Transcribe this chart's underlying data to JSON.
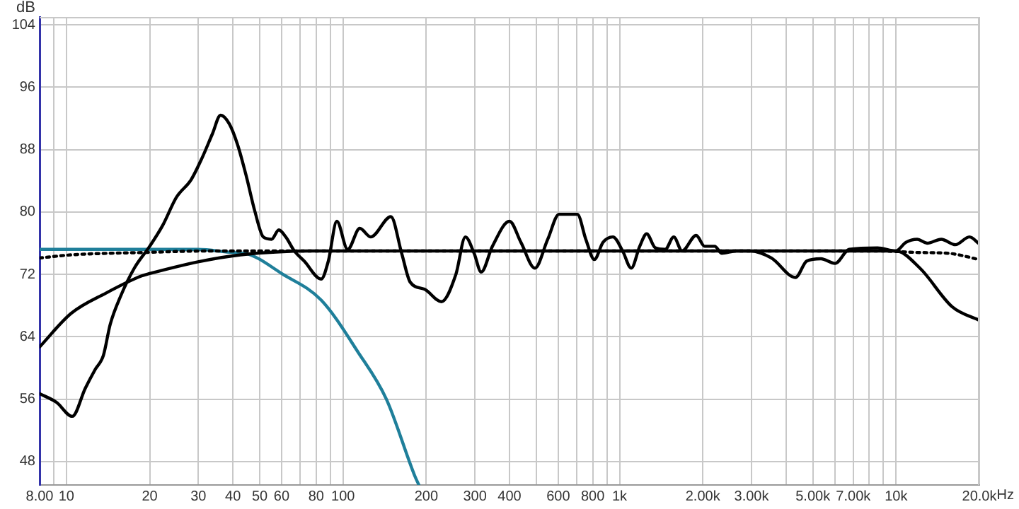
{
  "chart_data": {
    "type": "line",
    "ylabel": "dB",
    "log": "x",
    "xlim": [
      8,
      20000
    ],
    "ylim": [
      45,
      105
    ],
    "xticks": [
      {
        "value": 8,
        "label": "8.00"
      },
      {
        "value": 9,
        "label": null
      },
      10,
      20,
      30,
      40,
      50,
      60,
      {
        "value": 70,
        "label": null
      },
      80,
      {
        "value": 90,
        "label": null
      },
      100,
      200,
      300,
      400,
      {
        "value": 500,
        "label": null
      },
      600,
      {
        "value": 700,
        "label": null
      },
      800,
      {
        "value": 900,
        "label": null
      },
      {
        "value": 1000,
        "label": "1k"
      },
      {
        "value": 2000,
        "label": "2.00k"
      },
      {
        "value": 3000,
        "label": "3.00k"
      },
      {
        "value": 4000,
        "label": null
      },
      {
        "value": 5000,
        "label": "5.00k"
      },
      {
        "value": 6000,
        "label": null
      },
      {
        "value": 7000,
        "label": "7.00k"
      },
      {
        "value": 8000,
        "label": null
      },
      {
        "value": 9000,
        "label": null
      },
      {
        "value": 10000,
        "label": "10k"
      },
      {
        "value": 20000,
        "label": "20.0k"
      }
    ],
    "xlabel": "Hz",
    "yticks": [
      48,
      56,
      64,
      72,
      80,
      88,
      96,
      104
    ],
    "grid": true,
    "legend": false,
    "series": [
      {
        "color": "#000000",
        "line_style": "solid",
        "x": [
          8,
          9.2,
          10.5,
          11.7,
          12.7,
          13.6,
          14.4,
          15.7,
          17.6,
          20,
          22.3,
          25,
          28.2,
          31,
          33.7,
          36.1,
          38.8,
          41.6,
          44.7,
          48,
          51.5,
          55.2,
          58.6,
          62.1,
          66.7,
          72.4,
          83.4,
          88.5,
          95,
          104,
          115,
          126,
          149,
          163,
          175,
          197,
          227,
          256,
          277,
          298,
          316,
          347,
          400,
          440,
          494,
          550,
          604,
          704,
          755,
          811,
          871,
          946,
          1026,
          1102,
          1183,
          1253,
          1346,
          1462,
          1570,
          1683,
          1893,
          2032,
          2208,
          2342,
          2636,
          2966,
          3539,
          4325,
          4753,
          5346,
          6012,
          6761,
          8570,
          9980,
          10840,
          11910,
          12940,
          14560,
          16380,
          18410,
          20000
        ],
        "values": [
          56.7,
          55.6,
          53.8,
          57.4,
          59.8,
          61.6,
          65.6,
          69.2,
          72.8,
          75.6,
          78.3,
          81.9,
          84.1,
          87,
          90,
          92.4,
          91.3,
          88.6,
          84.6,
          80.1,
          76.8,
          76.5,
          77.7,
          76.8,
          75,
          73.7,
          71.4,
          73.7,
          78.8,
          75.2,
          77.9,
          76.8,
          79.4,
          74.7,
          71,
          70.1,
          68.5,
          72,
          76.8,
          74.7,
          72.3,
          75.6,
          78.8,
          76.1,
          72.8,
          76.5,
          79.7,
          79.7,
          76.5,
          73.9,
          76.1,
          76.8,
          75,
          72.8,
          75.6,
          77.2,
          75.4,
          75.2,
          76.8,
          75,
          77,
          75.6,
          75.6,
          74.7,
          75,
          75,
          74.1,
          71.6,
          73.7,
          74,
          73.4,
          75.2,
          75.4,
          75,
          76.1,
          76.5,
          76,
          76.5,
          75.8,
          76.8,
          75.9
        ]
      },
      {
        "color": "#000000",
        "line_style": "solid",
        "x": [
          8,
          10.4,
          13.9,
          18.7,
          20,
          29.9,
          42.6,
          76.9,
          9980,
          12190,
          16000,
          20000
        ],
        "values": [
          62.7,
          67,
          69.6,
          71.8,
          72.1,
          73.6,
          74.5,
          75,
          75,
          72.8,
          67.8,
          66.1
        ]
      },
      {
        "color": "#000000",
        "line_style": "dotted",
        "x": [
          8,
          10.4,
          18.7,
          33.7,
          8570,
          12190,
          15450,
          20000
        ],
        "values": [
          74.1,
          74.5,
          74.8,
          75,
          75,
          74.8,
          74.7,
          73.9
        ]
      },
      {
        "color": "#1f7f9a",
        "line_style": "solid",
        "x": [
          8,
          29.9,
          40.2,
          44.2,
          60.7,
          83.4,
          113.5,
          143.5,
          181.6,
          188
        ],
        "values": [
          75.2,
          75.2,
          74.8,
          74.7,
          72,
          68.7,
          62,
          56,
          46.2,
          45
        ]
      }
    ]
  }
}
